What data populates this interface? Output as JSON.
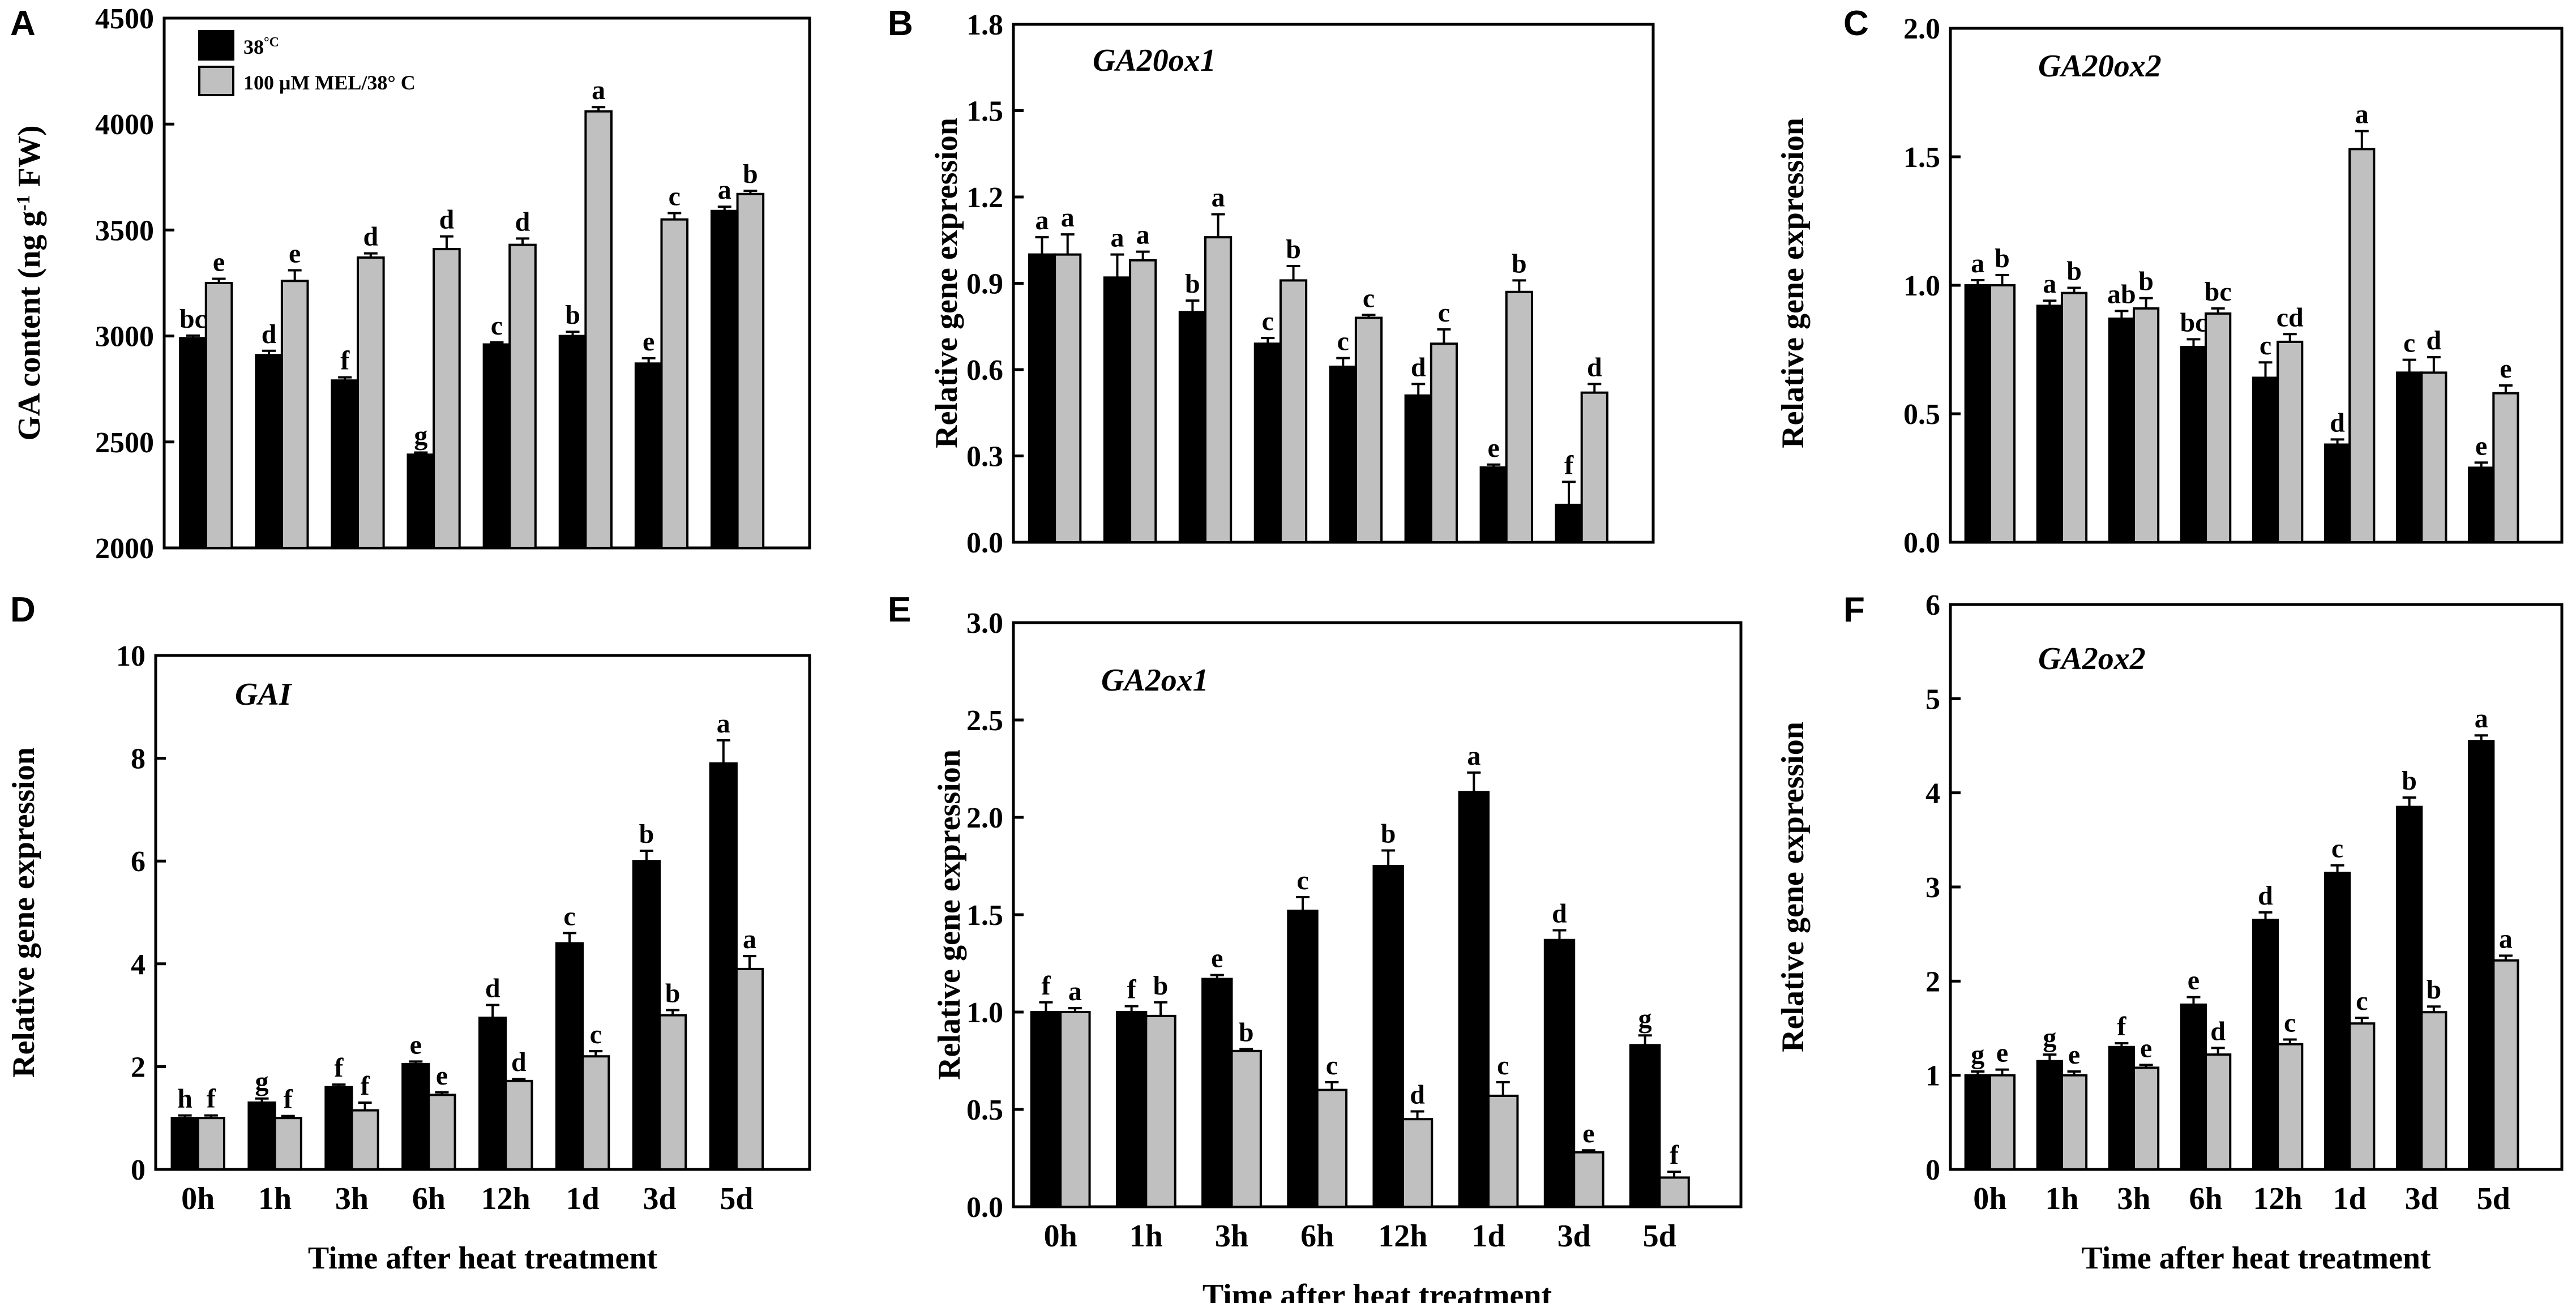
{
  "figure": {
    "x_axis_label": "Time after heat treatment",
    "categories": [
      "0h",
      "1h",
      "3h",
      "6h",
      "12h",
      "1d",
      "3d",
      "5d"
    ],
    "legend": {
      "series1": "38°C",
      "series1_main": "38",
      "series1_sup": "°C",
      "series2": "100 μM MEL/38° C"
    },
    "colors": {
      "series1": "#000000",
      "series2": "#c0c0c0",
      "axis": "#000000"
    }
  },
  "chart_data": [
    {
      "panel": "A",
      "type": "bar",
      "title": "",
      "ylabel": "GA content (ng g-1 FW)",
      "ylabel_parts": [
        "GA content (ng g",
        "-1",
        " FW)"
      ],
      "ylim": [
        2000,
        4500
      ],
      "yticks": [
        2000,
        2500,
        3000,
        3500,
        4000,
        4500
      ],
      "ytick_labels": [
        "2000",
        "2500",
        "3000",
        "3500",
        "4000",
        "4500"
      ],
      "xlabel": "",
      "categories": [
        "0h",
        "1h",
        "3h",
        "6h",
        "12h",
        "1d",
        "3d",
        "5d"
      ],
      "series": [
        {
          "name": "38°C",
          "values": [
            2990,
            2910,
            2790,
            2440,
            2960,
            3000,
            2870,
            3590
          ],
          "errors": [
            12,
            20,
            15,
            10,
            10,
            20,
            25,
            20
          ],
          "letters": [
            "bc",
            "d",
            "f",
            "g",
            "c",
            "b",
            "e",
            "a"
          ]
        },
        {
          "name": "100 μM MEL/38° C",
          "values": [
            3250,
            3260,
            3370,
            3410,
            3430,
            4060,
            3550,
            3670
          ],
          "errors": [
            20,
            50,
            20,
            60,
            30,
            20,
            30,
            15
          ],
          "letters": [
            "e",
            "e",
            "d",
            "d",
            "d",
            "a",
            "c",
            "b"
          ]
        }
      ]
    },
    {
      "panel": "B",
      "type": "bar",
      "title": "GA20ox1",
      "ylabel": "Relative gene expression",
      "ylim": [
        0,
        1.8
      ],
      "yticks": [
        0,
        0.3,
        0.6,
        0.9,
        1.2,
        1.5,
        1.8
      ],
      "ytick_labels": [
        "0.0",
        "0.3",
        "0.6",
        "0.9",
        "1.2",
        "1.5",
        "1.8"
      ],
      "xlabel": "",
      "categories": [
        "0h",
        "1h",
        "3h",
        "6h",
        "12h",
        "1d",
        "3d",
        "5d"
      ],
      "series": [
        {
          "name": "38°C",
          "values": [
            1.0,
            0.92,
            0.8,
            0.69,
            0.61,
            0.51,
            0.26,
            0.13
          ],
          "errors": [
            0.06,
            0.08,
            0.04,
            0.02,
            0.03,
            0.04,
            0.01,
            0.08
          ],
          "letters": [
            "a",
            "a",
            "b",
            "c",
            "c",
            "d",
            "e",
            "f"
          ]
        },
        {
          "name": "100 μM MEL/38° C",
          "values": [
            1.0,
            0.98,
            1.06,
            0.91,
            0.78,
            0.69,
            0.87,
            0.52
          ],
          "errors": [
            0.07,
            0.03,
            0.08,
            0.05,
            0.01,
            0.05,
            0.04,
            0.03
          ],
          "letters": [
            "a",
            "a",
            "a",
            "b",
            "c",
            "c",
            "b",
            "d"
          ]
        }
      ]
    },
    {
      "panel": "C",
      "type": "bar",
      "title": "GA20ox2",
      "ylabel": "Relative gene expression",
      "ylim": [
        0,
        2.0
      ],
      "yticks": [
        0,
        0.5,
        1.0,
        1.5,
        2.0
      ],
      "ytick_labels": [
        "0.0",
        "0.5",
        "1.0",
        "1.5",
        "2.0"
      ],
      "xlabel": "",
      "categories": [
        "0h",
        "1h",
        "3h",
        "6h",
        "12h",
        "1d",
        "3d",
        "5d"
      ],
      "series": [
        {
          "name": "38°C",
          "values": [
            1.0,
            0.92,
            0.87,
            0.76,
            0.64,
            0.38,
            0.66,
            0.29
          ],
          "errors": [
            0.02,
            0.02,
            0.03,
            0.03,
            0.06,
            0.02,
            0.05,
            0.02
          ],
          "letters": [
            "a",
            "a",
            "ab",
            "bc",
            "c",
            "d",
            "c",
            "e"
          ]
        },
        {
          "name": "100 μM MEL/38° C",
          "values": [
            1.0,
            0.97,
            0.91,
            0.89,
            0.78,
            1.53,
            0.66,
            0.58
          ],
          "errors": [
            0.04,
            0.02,
            0.04,
            0.02,
            0.03,
            0.07,
            0.06,
            0.03
          ],
          "letters": [
            "b",
            "b",
            "b",
            "bc",
            "cd",
            "a",
            "d",
            "e"
          ]
        }
      ]
    },
    {
      "panel": "D",
      "type": "bar",
      "title": "GAI",
      "ylabel": "Relative gene expression",
      "ylim": [
        0,
        10
      ],
      "yticks": [
        0,
        2,
        4,
        6,
        8,
        10
      ],
      "ytick_labels": [
        "0",
        "2",
        "4",
        "6",
        "8",
        "10"
      ],
      "xlabel": "Time after heat treatment",
      "categories": [
        "0h",
        "1h",
        "3h",
        "6h",
        "12h",
        "1d",
        "3d",
        "5d"
      ],
      "series": [
        {
          "name": "38°C",
          "values": [
            1.0,
            1.3,
            1.6,
            2.05,
            2.95,
            4.4,
            6.0,
            7.9
          ],
          "errors": [
            0.05,
            0.08,
            0.05,
            0.05,
            0.25,
            0.2,
            0.2,
            0.45
          ],
          "letters": [
            "h",
            "g",
            "f",
            "e",
            "d",
            "c",
            "b",
            "a"
          ]
        },
        {
          "name": "100 μM MEL/38° C",
          "values": [
            1.0,
            1.0,
            1.15,
            1.45,
            1.72,
            2.2,
            3.0,
            3.9
          ],
          "errors": [
            0.05,
            0.04,
            0.15,
            0.05,
            0.04,
            0.1,
            0.1,
            0.25
          ],
          "letters": [
            "f",
            "f",
            "f",
            "e",
            "d",
            "c",
            "b",
            "a"
          ]
        }
      ]
    },
    {
      "panel": "E",
      "type": "bar",
      "title": "GA2ox1",
      "ylabel": "Relative gene expression",
      "ylim": [
        0,
        3.0
      ],
      "yticks": [
        0,
        0.5,
        1.0,
        1.5,
        2.0,
        2.5,
        3.0
      ],
      "ytick_labels": [
        "0.0",
        "0.5",
        "1.0",
        "1.5",
        "2.0",
        "2.5",
        "3.0"
      ],
      "xlabel": "Time after heat treatment",
      "categories": [
        "0h",
        "1h",
        "3h",
        "6h",
        "12h",
        "1d",
        "3d",
        "5d"
      ],
      "series": [
        {
          "name": "38°C",
          "values": [
            1.0,
            1.0,
            1.17,
            1.52,
            1.75,
            2.13,
            1.37,
            0.83
          ],
          "errors": [
            0.05,
            0.03,
            0.02,
            0.07,
            0.08,
            0.1,
            0.05,
            0.05
          ],
          "letters": [
            "f",
            "f",
            "e",
            "c",
            "b",
            "a",
            "d",
            "g"
          ]
        },
        {
          "name": "100 μM MEL/38° C",
          "values": [
            1.0,
            0.98,
            0.8,
            0.6,
            0.45,
            0.57,
            0.28,
            0.15
          ],
          "errors": [
            0.02,
            0.07,
            0.01,
            0.04,
            0.04,
            0.07,
            0.01,
            0.03
          ],
          "letters": [
            "a",
            "b",
            "b",
            "c",
            "d",
            "c",
            "e",
            "f"
          ]
        }
      ]
    },
    {
      "panel": "F",
      "type": "bar",
      "title": "GA2ox2",
      "ylabel": "Relative gene expression",
      "ylim": [
        0,
        6
      ],
      "yticks": [
        0,
        1,
        2,
        3,
        4,
        5,
        6
      ],
      "ytick_labels": [
        "0",
        "1",
        "2",
        "3",
        "4",
        "5",
        "6"
      ],
      "xlabel": "Time after heat treatment",
      "categories": [
        "0h",
        "1h",
        "3h",
        "6h",
        "12h",
        "1d",
        "3d",
        "5d"
      ],
      "series": [
        {
          "name": "38°C",
          "values": [
            1.0,
            1.15,
            1.3,
            1.75,
            2.65,
            3.15,
            3.85,
            4.55
          ],
          "errors": [
            0.04,
            0.07,
            0.04,
            0.08,
            0.08,
            0.08,
            0.1,
            0.06
          ],
          "letters": [
            "g",
            "g",
            "f",
            "e",
            "d",
            "c",
            "b",
            "a"
          ]
        },
        {
          "name": "100 μM MEL/38° C",
          "values": [
            1.0,
            1.0,
            1.08,
            1.22,
            1.33,
            1.55,
            1.67,
            2.22
          ],
          "errors": [
            0.06,
            0.04,
            0.03,
            0.07,
            0.05,
            0.06,
            0.06,
            0.05
          ],
          "letters": [
            "e",
            "e",
            "e",
            "d",
            "c",
            "c",
            "b",
            "a"
          ]
        }
      ]
    }
  ]
}
